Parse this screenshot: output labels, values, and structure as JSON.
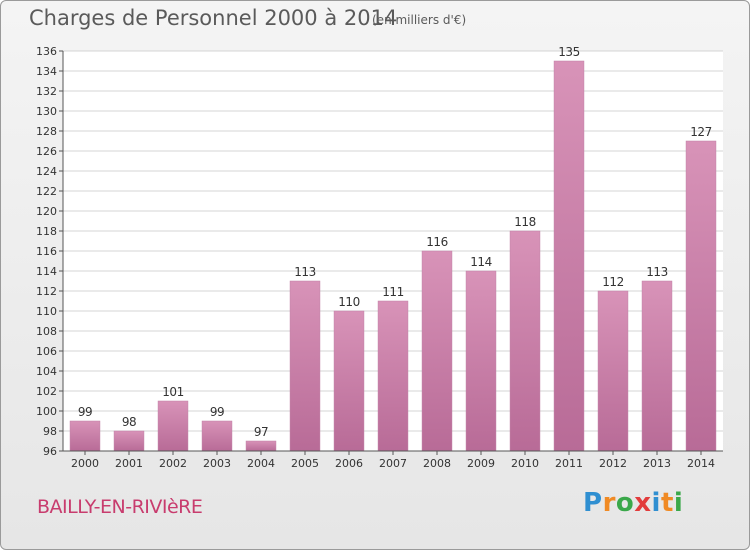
{
  "header": {
    "title": "Charges de Personnel 2000 à 2014",
    "subtitle": "(en milliers d'€)"
  },
  "footer": {
    "location": "BAILLY-EN-RIVIèRE",
    "brand": "Proxiti",
    "brand_letters": [
      "P",
      "r",
      "o",
      "x",
      "i",
      "t",
      "i"
    ],
    "brand_colors": [
      "#2f8fd1",
      "#f08a24",
      "#3aa84a",
      "#e23c3c",
      "#2f8fd1",
      "#f08a24",
      "#3aa84a"
    ]
  },
  "chart_data": {
    "type": "bar",
    "categories": [
      "2000",
      "2001",
      "2002",
      "2003",
      "2004",
      "2005",
      "2006",
      "2007",
      "2008",
      "2009",
      "2010",
      "2011",
      "2012",
      "2013",
      "2014"
    ],
    "values": [
      99,
      98,
      101,
      99,
      97,
      113,
      110,
      111,
      116,
      114,
      118,
      135,
      112,
      113,
      127
    ],
    "title": "Charges de Personnel 2000 à 2014",
    "subtitle": "(en milliers d'€)",
    "ylim": [
      96,
      136
    ],
    "yticks": [
      96,
      98,
      100,
      102,
      104,
      106,
      108,
      110,
      112,
      114,
      116,
      118,
      120,
      122,
      124,
      126,
      128,
      130,
      132,
      134,
      136
    ],
    "grid": true,
    "bar_color": "#d893b8",
    "bar_color_dark": "#b86b97",
    "grid_color": "#d4d4d4"
  }
}
